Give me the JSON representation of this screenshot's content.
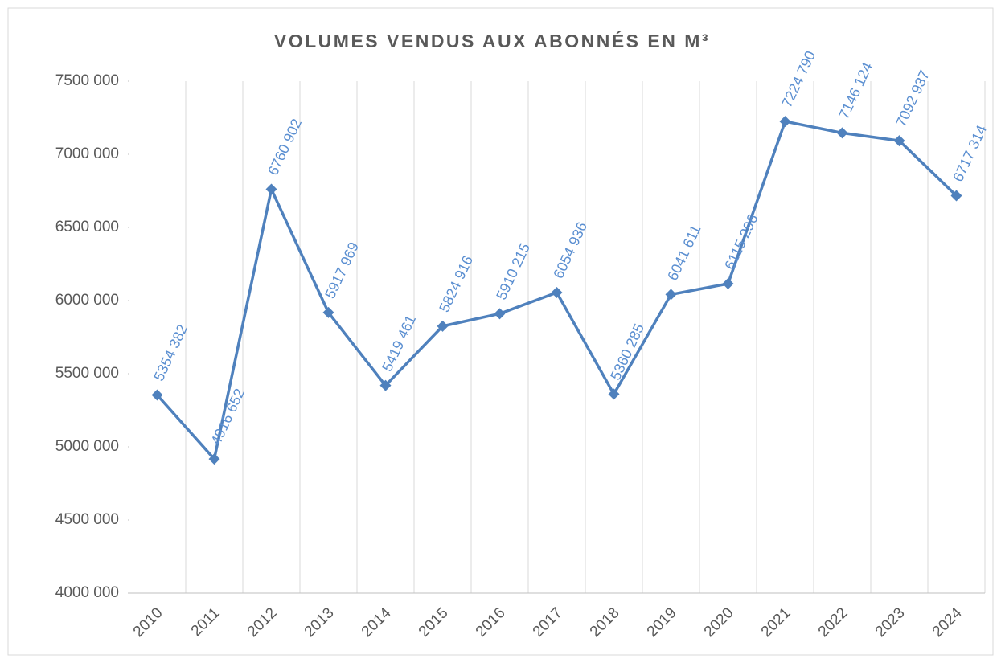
{
  "chart_data": {
    "type": "line",
    "title": "VOLUMES VENDUS AUX ABONNÉS EN M³",
    "categories": [
      "2010",
      "2011",
      "2012",
      "2013",
      "2014",
      "2015",
      "2016",
      "2017",
      "2018",
      "2019",
      "2020",
      "2021",
      "2022",
      "2023",
      "2024"
    ],
    "series": [
      {
        "name": "Volumes vendus",
        "color": "#4f81bd",
        "values": [
          5354382,
          4916652,
          6760902,
          5917969,
          5419461,
          5824916,
          5910215,
          6054936,
          5360285,
          6041611,
          6115296,
          7224790,
          7146124,
          7092937,
          6717314
        ],
        "value_labels": [
          "5354 382",
          "4916 652",
          "6760 902",
          "5917 969",
          "5419 461",
          "5824 916",
          "5910 215",
          "6054 936",
          "5360 285",
          "6041 611",
          "6115 296",
          "7224 790",
          "7146 124",
          "7092 937",
          "6717 314"
        ]
      }
    ],
    "ylim": [
      4000000,
      7500000
    ],
    "yticks": [
      {
        "value": 4000000,
        "label": "4000 000"
      },
      {
        "value": 4500000,
        "label": "4500 000"
      },
      {
        "value": 5000000,
        "label": "5000 000"
      },
      {
        "value": 5500000,
        "label": "5500 000"
      },
      {
        "value": 6000000,
        "label": "6000 000"
      },
      {
        "value": 6500000,
        "label": "6500 000"
      },
      {
        "value": 7000000,
        "label": "7000 000"
      },
      {
        "value": 7500000,
        "label": "7500 000"
      }
    ],
    "grid": true
  }
}
